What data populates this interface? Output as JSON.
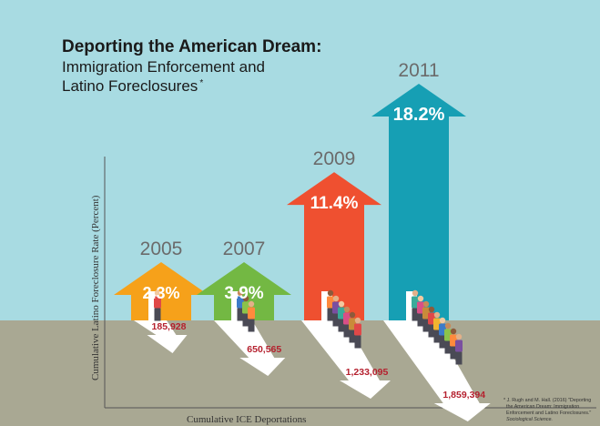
{
  "chart_data": {
    "type": "bar",
    "title": "Deporting the American Dream:",
    "subtitle_lines": [
      "Immigration Enforcement and",
      "Latino Foreclosures"
    ],
    "subtitle_marker": "*",
    "xlabel": "Cumulative ICE Deportations",
    "ylabel": "Cumulative Latino Foreclosure Rate (Percent)",
    "categories": [
      "2005",
      "2007",
      "2009",
      "2011"
    ],
    "series": [
      {
        "values": [
          2.3,
          3.9,
          11.4,
          18.2
        ],
        "labels": [
          "2.3%",
          "3.9%",
          "11.4%",
          "18.2%"
        ]
      }
    ],
    "deportations": [
      185928,
      650565,
      1233095,
      1859394
    ],
    "deportation_labels": [
      "185,928",
      "650,565",
      "1,233,095",
      "1,859,394"
    ],
    "people_counts": [
      1,
      3,
      6,
      9
    ],
    "colors": [
      "#f6a11a",
      "#73b843",
      "#ef5030",
      "#169fb4"
    ],
    "sky_color": "#a8dbe2",
    "ground_color": "#a9a893",
    "footnote_lines": [
      "* J. Rugh and M. Hall. (2016) \"Deporting",
      "the American Dream: Immigration",
      "Enforcement and Latino Foreclosures.\"",
      "Sociological Science."
    ]
  }
}
